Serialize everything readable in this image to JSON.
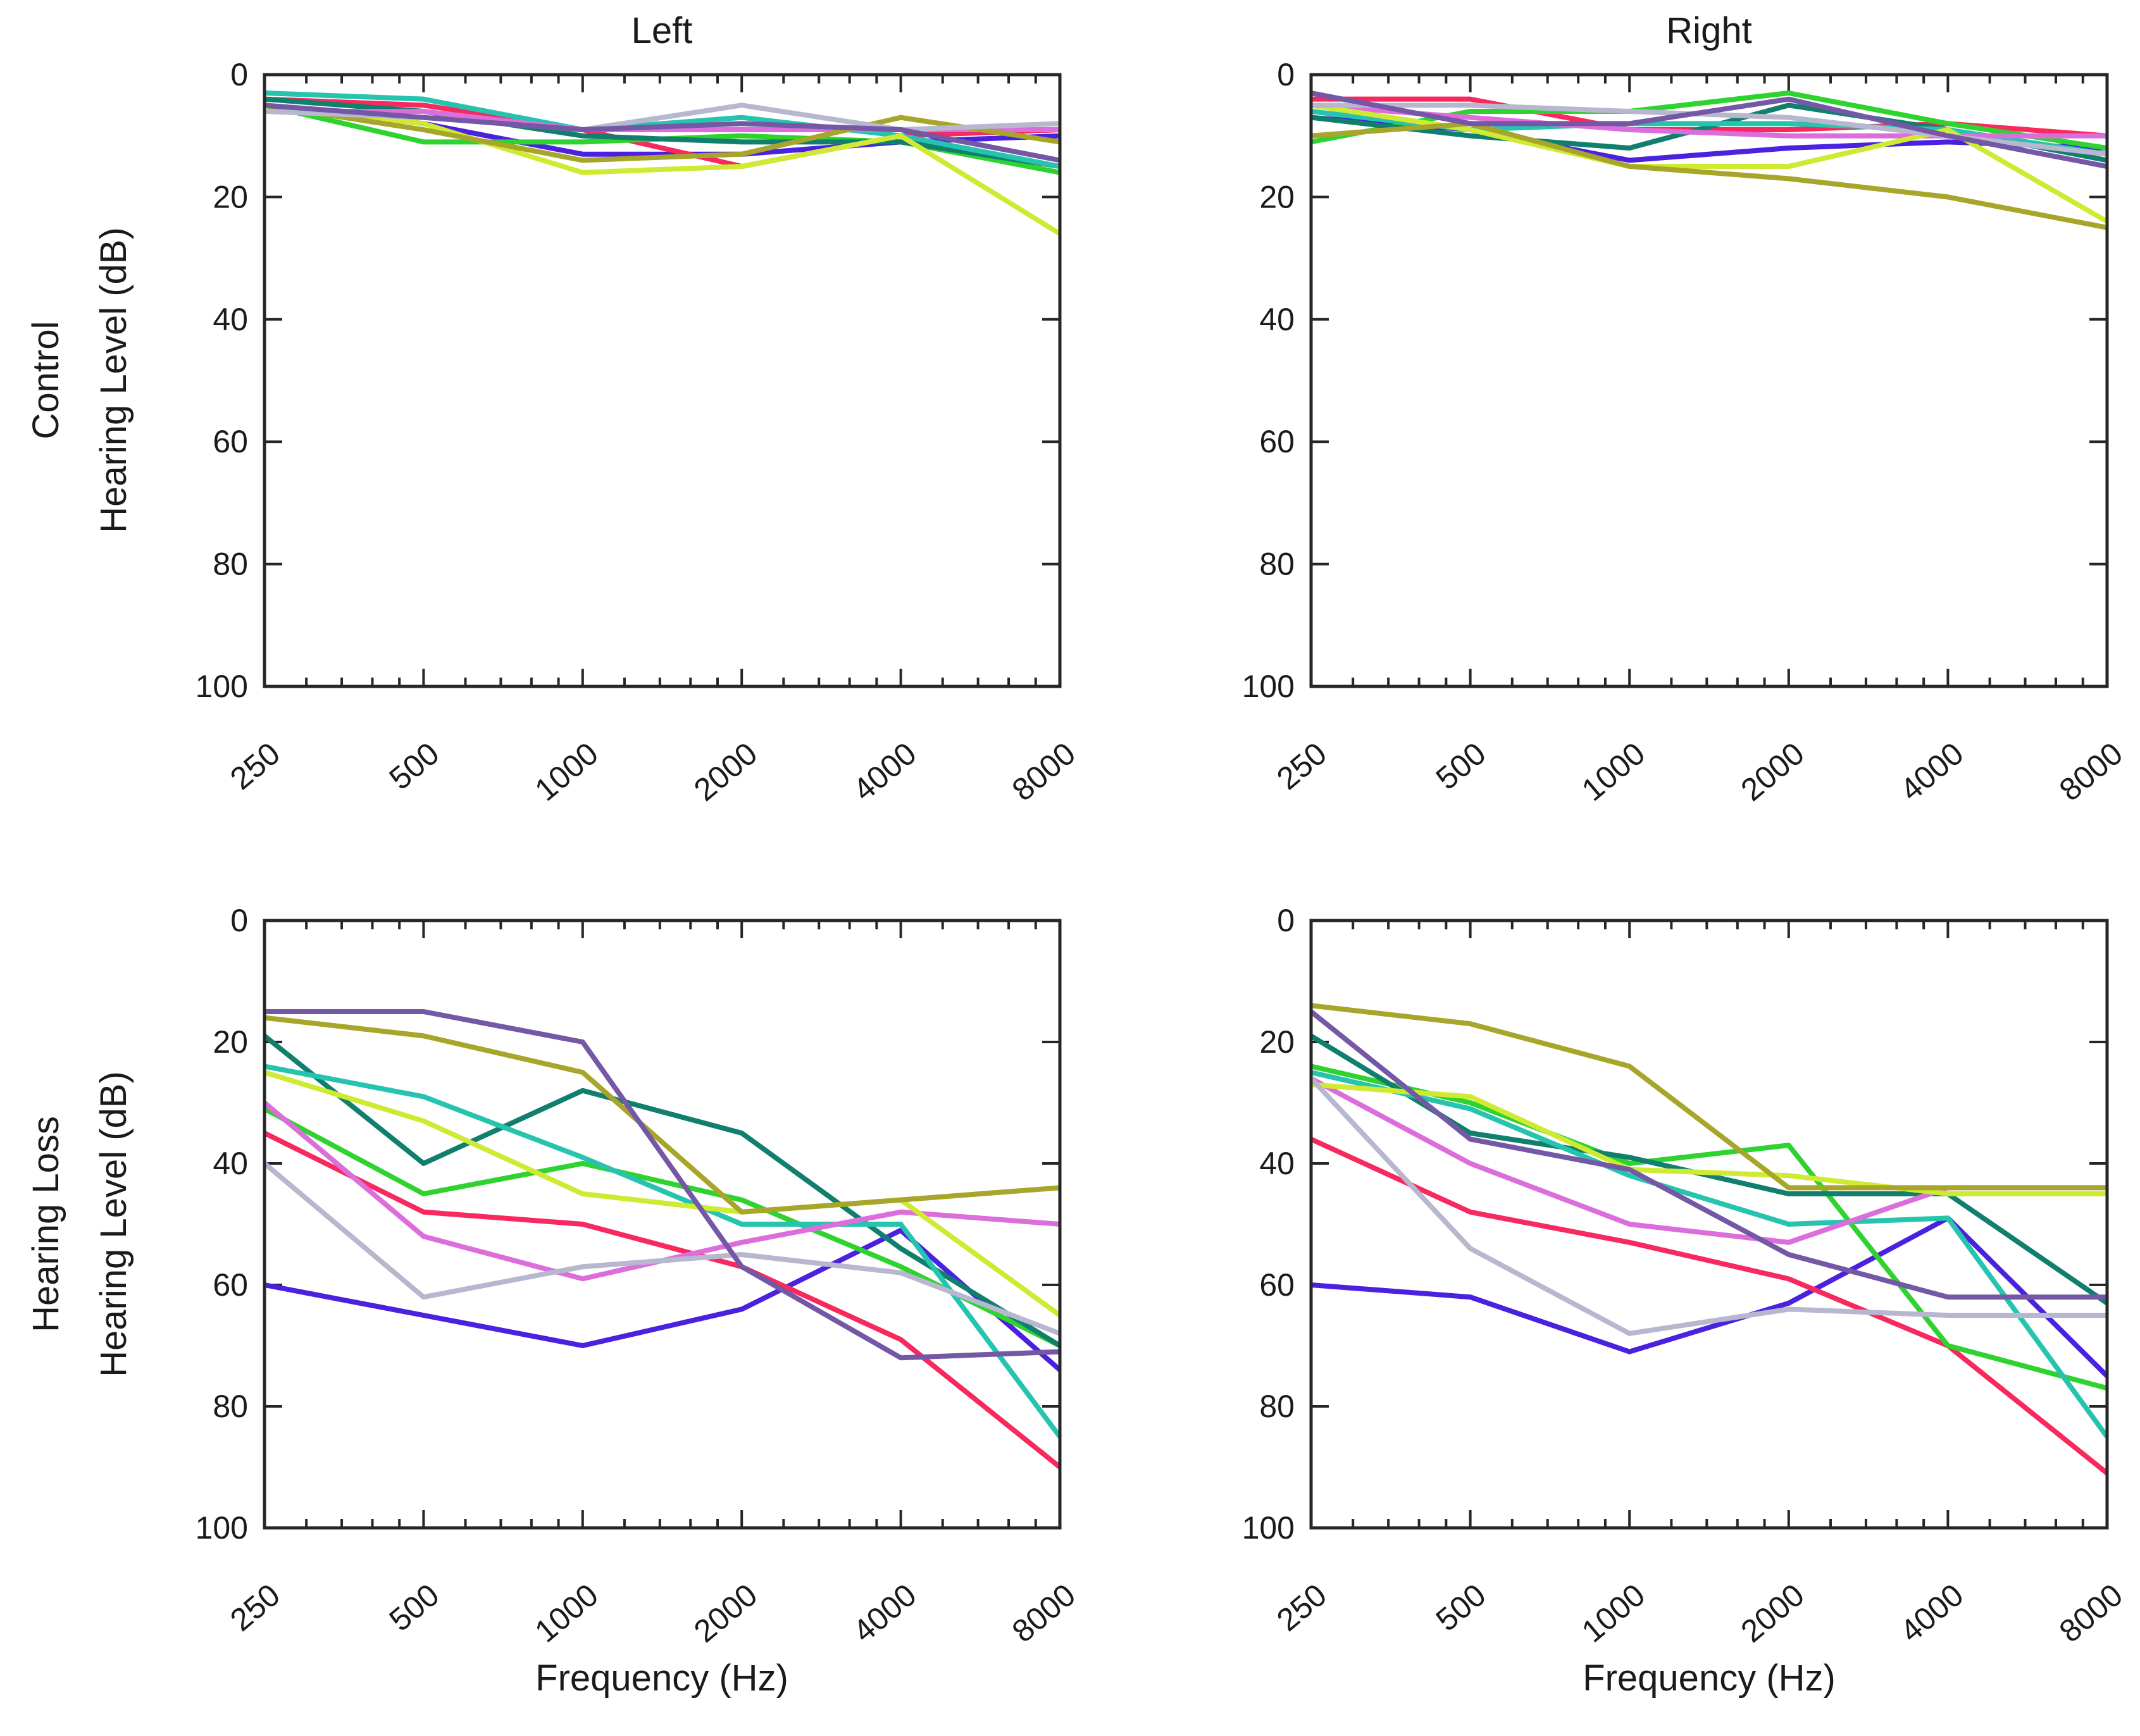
{
  "figure": {
    "background": "#ffffff",
    "text_color": "#1a1a1a",
    "axis_color": "#262626",
    "col_titles": [
      "Left",
      "Right"
    ],
    "row_labels": [
      "Control",
      "Hearing Loss"
    ],
    "y_axis_label": "Hearing Level (dB)",
    "x_axis_label": "Frequency (Hz)",
    "line_colors": {
      "blue": "#4A21DE",
      "crimson": "#F7295E",
      "green": "#2FD32F",
      "dark-teal": "#117F6D",
      "turquoise": "#26C4AE",
      "orchid": "#DC6EDC",
      "chartreuse": "#CFEA32",
      "olive": "#A7A62A",
      "lavender": "#B7B7CF",
      "purple": "#7457A5"
    }
  },
  "chart_data": [
    {
      "id": "control-left",
      "type": "line",
      "row": "Control",
      "col": "Left",
      "title": "Left",
      "x_scale": "log2-octaves",
      "x_categories": [
        250,
        500,
        1000,
        2000,
        4000,
        8000
      ],
      "x_tick_labels": [
        "250",
        "500",
        "1000",
        "2000",
        "4000",
        "8000"
      ],
      "ylim": [
        0,
        100
      ],
      "y_inverted": true,
      "y_ticks": [
        0,
        20,
        40,
        60,
        80,
        100
      ],
      "y_tick_labels": [
        "0",
        "20",
        "40",
        "60",
        "80",
        "100"
      ],
      "series": [
        {
          "name": "subject-blue",
          "color": "#4A21DE",
          "values": [
            5,
            8,
            13,
            13,
            11,
            10
          ]
        },
        {
          "name": "subject-crimson",
          "color": "#F7295E",
          "values": [
            4,
            5,
            9,
            15,
            10,
            9
          ]
        },
        {
          "name": "subject-green",
          "color": "#2FD32F",
          "values": [
            5,
            11,
            11,
            10,
            11,
            16
          ]
        },
        {
          "name": "subject-dark-teal",
          "color": "#117F6D",
          "values": [
            4,
            6,
            10,
            11,
            11,
            15
          ]
        },
        {
          "name": "subject-turquoise",
          "color": "#26C4AE",
          "values": [
            3,
            4,
            9,
            7,
            10,
            15
          ]
        },
        {
          "name": "subject-orchid",
          "color": "#DC6EDC",
          "values": [
            6,
            6,
            9,
            9,
            9,
            9
          ]
        },
        {
          "name": "subject-chartreuse",
          "color": "#CFEA32",
          "values": [
            5,
            8,
            16,
            15,
            10,
            26
          ]
        },
        {
          "name": "subject-olive",
          "color": "#A7A62A",
          "values": [
            5,
            9,
            14,
            13,
            7,
            11
          ]
        },
        {
          "name": "subject-lavender",
          "color": "#B7B7CF",
          "values": [
            6,
            7,
            9,
            5,
            9,
            8
          ]
        },
        {
          "name": "subject-purple",
          "color": "#7457A5",
          "values": [
            5,
            7,
            9,
            8,
            9,
            14
          ]
        }
      ]
    },
    {
      "id": "control-right",
      "type": "line",
      "row": "Control",
      "col": "Right",
      "title": "Right",
      "x_scale": "log2-octaves",
      "x_categories": [
        250,
        500,
        1000,
        2000,
        4000,
        8000
      ],
      "x_tick_labels": [
        "250",
        "500",
        "1000",
        "2000",
        "4000",
        "8000"
      ],
      "ylim": [
        0,
        100
      ],
      "y_inverted": true,
      "y_ticks": [
        0,
        20,
        40,
        60,
        80,
        100
      ],
      "y_tick_labels": [
        "0",
        "20",
        "40",
        "60",
        "80",
        "100"
      ],
      "series": [
        {
          "name": "subject-blue",
          "color": "#4A21DE",
          "values": [
            7,
            9,
            14,
            12,
            11,
            12
          ]
        },
        {
          "name": "subject-crimson",
          "color": "#F7295E",
          "values": [
            4,
            4,
            9,
            9,
            8,
            10
          ]
        },
        {
          "name": "subject-green",
          "color": "#2FD32F",
          "values": [
            11,
            6,
            6,
            3,
            8,
            12
          ]
        },
        {
          "name": "subject-dark-teal",
          "color": "#117F6D",
          "values": [
            7,
            10,
            12,
            5,
            9,
            14
          ]
        },
        {
          "name": "subject-turquoise",
          "color": "#26C4AE",
          "values": [
            6,
            9,
            8,
            8,
            9,
            13
          ]
        },
        {
          "name": "subject-orchid",
          "color": "#DC6EDC",
          "values": [
            5,
            7,
            9,
            10,
            10,
            10
          ]
        },
        {
          "name": "subject-chartreuse",
          "color": "#CFEA32",
          "values": [
            5,
            9,
            15,
            15,
            9,
            24
          ]
        },
        {
          "name": "subject-olive",
          "color": "#A7A62A",
          "values": [
            10,
            8,
            15,
            17,
            20,
            25
          ]
        },
        {
          "name": "subject-lavender",
          "color": "#B7B7CF",
          "values": [
            5,
            5,
            6,
            7,
            10,
            13
          ]
        },
        {
          "name": "subject-purple",
          "color": "#7457A5",
          "values": [
            3,
            8,
            8,
            4,
            10,
            15
          ]
        }
      ]
    },
    {
      "id": "hearing-loss-left",
      "type": "line",
      "row": "Hearing Loss",
      "col": "Left",
      "title": "",
      "x_scale": "log2-octaves",
      "x_categories": [
        250,
        500,
        1000,
        2000,
        4000,
        8000
      ],
      "x_tick_labels": [
        "250",
        "500",
        "1000",
        "2000",
        "4000",
        "8000"
      ],
      "ylim": [
        0,
        100
      ],
      "y_inverted": true,
      "y_ticks": [
        0,
        20,
        40,
        60,
        80,
        100
      ],
      "y_tick_labels": [
        "0",
        "20",
        "40",
        "60",
        "80",
        "100"
      ],
      "series": [
        {
          "name": "subject-blue",
          "color": "#4A21DE",
          "values": [
            60,
            65,
            70,
            64,
            51,
            74
          ]
        },
        {
          "name": "subject-crimson",
          "color": "#F7295E",
          "values": [
            35,
            48,
            50,
            57,
            69,
            90
          ]
        },
        {
          "name": "subject-green",
          "color": "#2FD32F",
          "values": [
            31,
            45,
            40,
            46,
            57,
            70
          ]
        },
        {
          "name": "subject-dark-teal",
          "color": "#117F6D",
          "values": [
            19,
            40,
            28,
            35,
            54,
            70
          ]
        },
        {
          "name": "subject-turquoise",
          "color": "#26C4AE",
          "values": [
            24,
            29,
            39,
            50,
            50,
            85
          ]
        },
        {
          "name": "subject-orchid",
          "color": "#DC6EDC",
          "values": [
            30,
            52,
            59,
            53,
            48,
            50
          ]
        },
        {
          "name": "subject-chartreuse",
          "color": "#CFEA32",
          "values": [
            25,
            33,
            45,
            48,
            46,
            65
          ]
        },
        {
          "name": "subject-olive",
          "color": "#A7A62A",
          "values": [
            16,
            19,
            25,
            48,
            46,
            44
          ]
        },
        {
          "name": "subject-lavender",
          "color": "#B7B7CF",
          "values": [
            40,
            62,
            57,
            55,
            58,
            68
          ]
        },
        {
          "name": "subject-purple",
          "color": "#7457A5",
          "values": [
            15,
            15,
            20,
            57,
            72,
            71
          ]
        }
      ]
    },
    {
      "id": "hearing-loss-right",
      "type": "line",
      "row": "Hearing Loss",
      "col": "Right",
      "title": "",
      "x_scale": "log2-octaves",
      "x_categories": [
        250,
        500,
        1000,
        2000,
        4000,
        8000
      ],
      "x_tick_labels": [
        "250",
        "500",
        "1000",
        "2000",
        "4000",
        "8000"
      ],
      "ylim": [
        0,
        100
      ],
      "y_inverted": true,
      "y_ticks": [
        0,
        20,
        40,
        60,
        80,
        100
      ],
      "y_tick_labels": [
        "0",
        "20",
        "40",
        "60",
        "80",
        "100"
      ],
      "series": [
        {
          "name": "subject-blue",
          "color": "#4A21DE",
          "values": [
            60,
            62,
            71,
            63,
            49,
            75
          ]
        },
        {
          "name": "subject-crimson",
          "color": "#F7295E",
          "values": [
            36,
            48,
            53,
            59,
            70,
            91
          ]
        },
        {
          "name": "subject-green",
          "color": "#2FD32F",
          "values": [
            24,
            30,
            40,
            37,
            70,
            77
          ]
        },
        {
          "name": "subject-dark-teal",
          "color": "#117F6D",
          "values": [
            19,
            35,
            39,
            45,
            45,
            63
          ]
        },
        {
          "name": "subject-turquoise",
          "color": "#26C4AE",
          "values": [
            25,
            31,
            42,
            50,
            49,
            85
          ]
        },
        {
          "name": "subject-orchid",
          "color": "#DC6EDC",
          "values": [
            26,
            40,
            50,
            53,
            44,
            44
          ]
        },
        {
          "name": "subject-chartreuse",
          "color": "#CFEA32",
          "values": [
            27,
            29,
            41,
            42,
            45,
            45
          ]
        },
        {
          "name": "subject-olive",
          "color": "#A7A62A",
          "values": [
            14,
            17,
            24,
            44,
            44,
            44
          ]
        },
        {
          "name": "subject-lavender",
          "color": "#B7B7CF",
          "values": [
            26,
            54,
            68,
            64,
            65,
            65
          ]
        },
        {
          "name": "subject-purple",
          "color": "#7457A5",
          "values": [
            15,
            36,
            41,
            55,
            62,
            62
          ]
        }
      ]
    }
  ]
}
